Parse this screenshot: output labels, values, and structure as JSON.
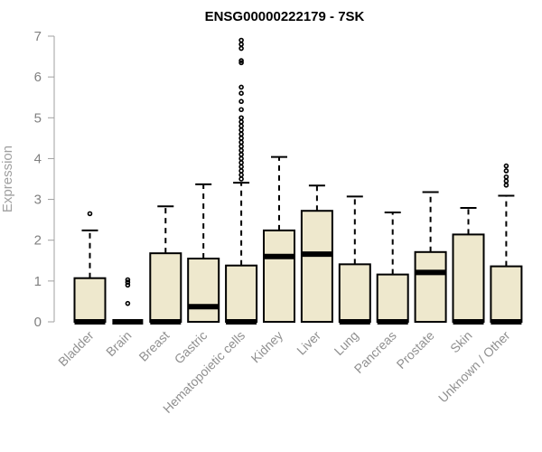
{
  "chart_data": {
    "type": "boxplot",
    "title": "ENSG00000222179 - 7SK",
    "ylabel": "Expression",
    "xlabel": "",
    "ylim": [
      0,
      7
    ],
    "yticks": [
      "0",
      "1",
      "2",
      "3",
      "4",
      "5",
      "6",
      "7"
    ],
    "grid": false,
    "box_fill": "#eee8cd",
    "categories": [
      "Bladder",
      "Brain",
      "Breast",
      "Gastric",
      "Hematopoietic cells",
      "Kidney",
      "Liver",
      "Lung",
      "Pancreas",
      "Prostate",
      "Skin",
      "Unknown / Other"
    ],
    "boxes": [
      {
        "q1": 0,
        "median": 0,
        "q3": 1.07,
        "whisker_low": 0,
        "whisker_high": 2.24,
        "outliers": [
          2.65
        ]
      },
      {
        "q1": 0,
        "median": 0,
        "q3": 0,
        "whisker_low": 0,
        "whisker_high": 0,
        "outliers": [
          0.45,
          0.9,
          0.97,
          1.03
        ]
      },
      {
        "q1": 0,
        "median": 0,
        "q3": 1.68,
        "whisker_low": 0,
        "whisker_high": 2.83,
        "outliers": []
      },
      {
        "q1": 0,
        "median": 0.37,
        "q3": 1.55,
        "whisker_low": 0,
        "whisker_high": 3.37,
        "outliers": []
      },
      {
        "q1": 0,
        "median": 0,
        "q3": 1.38,
        "whisker_low": 0,
        "whisker_high": 3.41,
        "outliers": [
          3.5,
          3.6,
          3.7,
          3.8,
          3.9,
          4.0,
          4.1,
          4.2,
          4.3,
          4.4,
          4.5,
          4.6,
          4.7,
          4.8,
          4.9,
          5.0,
          5.2,
          5.4,
          5.6,
          5.75,
          6.35,
          6.4,
          6.7,
          6.8,
          6.9
        ]
      },
      {
        "q1": 0,
        "median": 1.6,
        "q3": 2.24,
        "whisker_low": 0,
        "whisker_high": 4.04,
        "outliers": []
      },
      {
        "q1": 0,
        "median": 1.66,
        "q3": 2.72,
        "whisker_low": 0,
        "whisker_high": 3.34,
        "outliers": []
      },
      {
        "q1": 0,
        "median": 0,
        "q3": 1.41,
        "whisker_low": 0,
        "whisker_high": 3.07,
        "outliers": []
      },
      {
        "q1": 0,
        "median": 0,
        "q3": 1.16,
        "whisker_low": 0,
        "whisker_high": 2.68,
        "outliers": []
      },
      {
        "q1": 0,
        "median": 1.21,
        "q3": 1.71,
        "whisker_low": 0,
        "whisker_high": 3.18,
        "outliers": []
      },
      {
        "q1": 0,
        "median": 0,
        "q3": 2.14,
        "whisker_low": 0,
        "whisker_high": 2.79,
        "outliers": []
      },
      {
        "q1": 0,
        "median": 0,
        "q3": 1.36,
        "whisker_low": 0,
        "whisker_high": 3.09,
        "outliers": [
          3.35,
          3.45,
          3.55,
          3.7,
          3.82
        ]
      }
    ]
  }
}
